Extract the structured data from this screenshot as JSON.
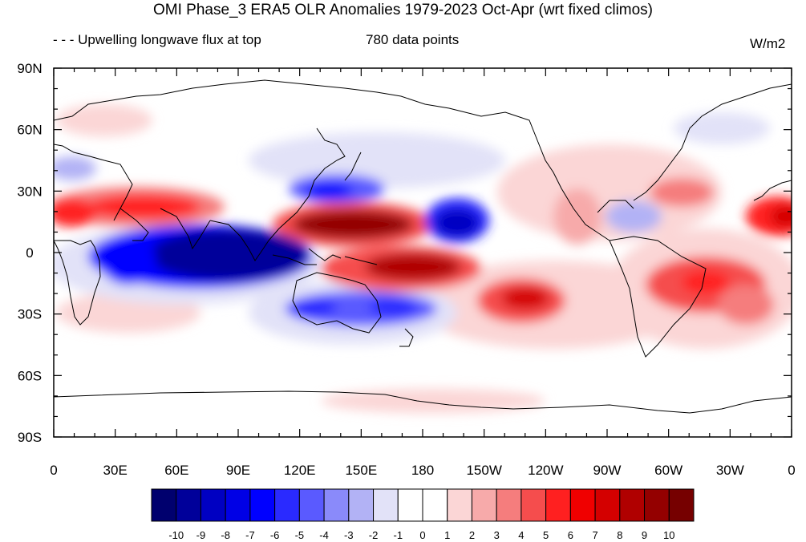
{
  "title": "OMI Phase_3 ERA5 OLR Anomalies 1979-2023 Oct-Apr (wrt fixed climos)",
  "subtitle_left": "- - - Upwelling longwave flux at top",
  "subtitle_center": "780 data points",
  "units": "W/m2",
  "chart_data": {
    "type": "heatmap",
    "lat_tick_labels": [
      "90N",
      "60N",
      "30N",
      "0",
      "30S",
      "60S",
      "90S"
    ],
    "lon_tick_labels": [
      "0",
      "30E",
      "60E",
      "90E",
      "120E",
      "150E",
      "180",
      "150W",
      "120W",
      "90W",
      "60W",
      "30W",
      "0"
    ],
    "lon_range": [
      0,
      360
    ],
    "lat_range": [
      -90,
      90
    ],
    "colorbar_labels": [
      "-10",
      "-9",
      "-8",
      "-7",
      "-6",
      "-5",
      "-4",
      "-3",
      "-2",
      "-1",
      "0",
      "1",
      "2",
      "3",
      "4",
      "5",
      "6",
      "7",
      "8",
      "9",
      "10"
    ],
    "colorbar_colors": [
      "#00006e",
      "#00009a",
      "#0000c2",
      "#0000e6",
      "#0000ff",
      "#2a2aff",
      "#5a5aff",
      "#8a8afa",
      "#b2b2f5",
      "#e2e2f8",
      "#ffffff",
      "#ffffff",
      "#fbd6d6",
      "#f7aaaa",
      "#f57d7d",
      "#f54d4d",
      "#ff2020",
      "#f00000",
      "#d40000",
      "#b00000",
      "#940000",
      "#760000"
    ],
    "anomaly_features": [
      {
        "lon": 90,
        "lat": -3,
        "value": -10
      },
      {
        "lon": 48,
        "lat": 20,
        "value": 6
      },
      {
        "lon": 140,
        "lat": 13,
        "value": 9
      },
      {
        "lon": 165,
        "lat": -5,
        "value": 8
      },
      {
        "lon": 195,
        "lat": 12,
        "value": -6
      },
      {
        "lon": 140,
        "lat": 28,
        "value": -4
      },
      {
        "lon": 150,
        "lat": -27,
        "value": -5
      },
      {
        "lon": 230,
        "lat": -22,
        "value": 6
      },
      {
        "lon": 315,
        "lat": -15,
        "value": 6
      },
      {
        "lon": 355,
        "lat": 18,
        "value": 6
      }
    ]
  }
}
